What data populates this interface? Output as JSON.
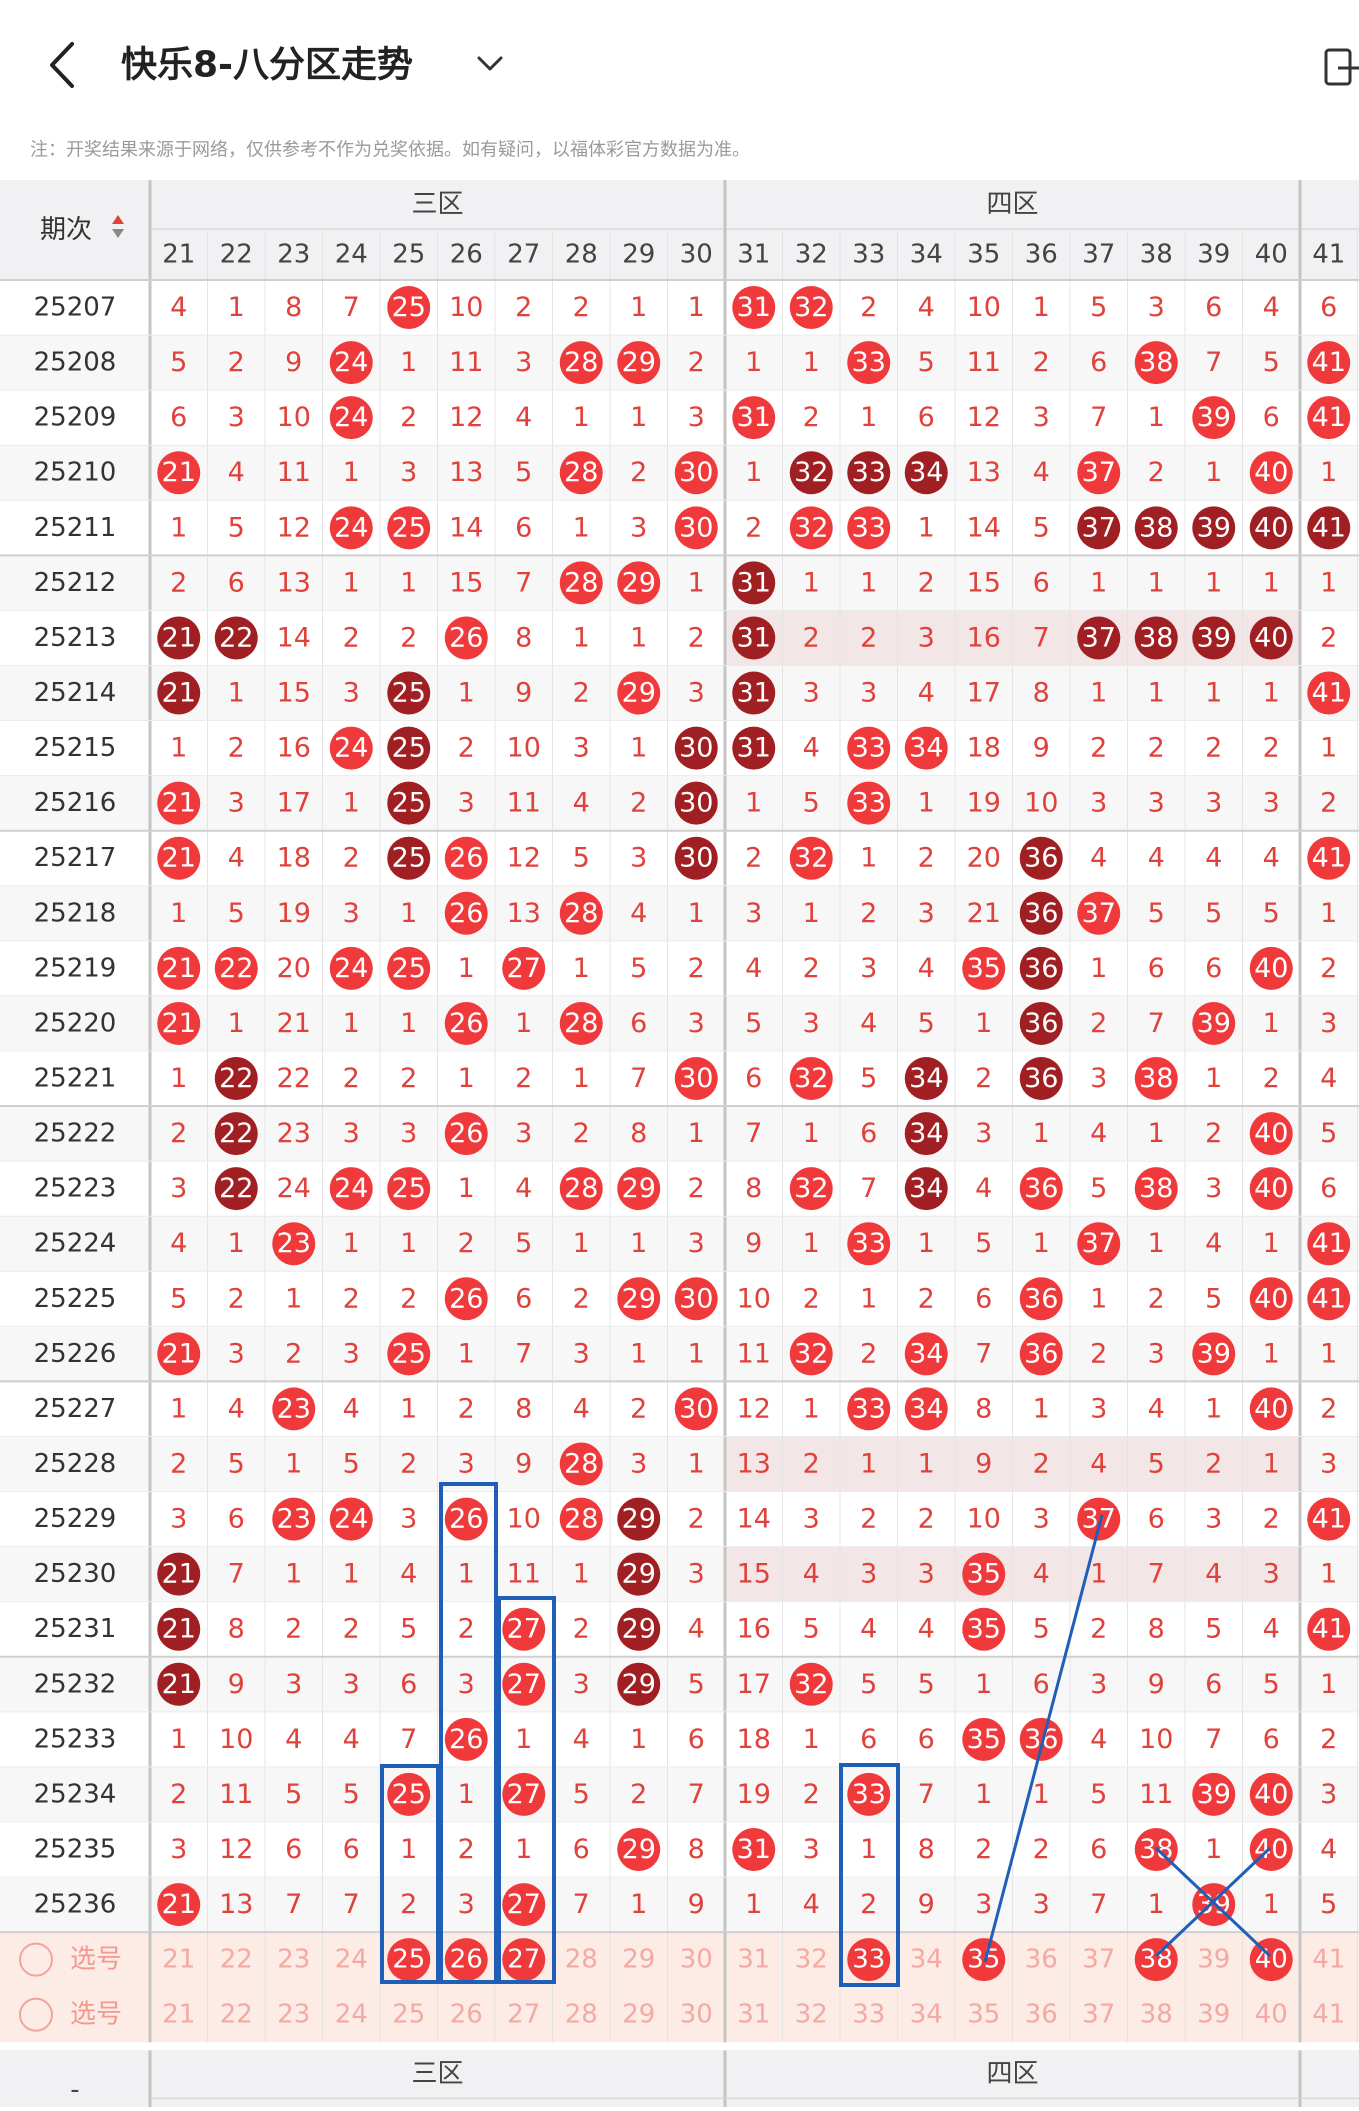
{
  "header": {
    "title": "快乐8-八分区走势"
  },
  "note": "注：开奖结果来源于网络，仅供参考不作为兑奖依据。如有疑问，以福体彩官方数据为准。",
  "table": {
    "period_label": "期次",
    "zones": [
      "三区",
      "四区"
    ],
    "columns": [
      21,
      22,
      23,
      24,
      25,
      26,
      27,
      28,
      29,
      30,
      31,
      32,
      33,
      34,
      35,
      36,
      37,
      38,
      39,
      40,
      41
    ],
    "rows": [
      {
        "period": "25207",
        "cells": [
          4,
          1,
          8,
          7,
          25,
          10,
          2,
          2,
          1,
          1,
          31,
          32,
          2,
          4,
          10,
          1,
          5,
          3,
          6,
          4,
          6
        ],
        "hit": [
          25,
          31,
          32
        ]
      },
      {
        "period": "25208",
        "cells": [
          5,
          2,
          9,
          24,
          1,
          11,
          3,
          28,
          29,
          2,
          1,
          1,
          33,
          5,
          11,
          2,
          6,
          38,
          7,
          5,
          41
        ],
        "hit": [
          24,
          28,
          29,
          33,
          38,
          41
        ]
      },
      {
        "period": "25209",
        "cells": [
          6,
          3,
          10,
          24,
          2,
          12,
          4,
          1,
          1,
          3,
          31,
          2,
          1,
          6,
          12,
          3,
          7,
          1,
          39,
          6,
          41
        ],
        "hit": [
          24,
          31,
          39,
          41
        ]
      },
      {
        "period": "25210",
        "cells": [
          21,
          4,
          11,
          1,
          3,
          13,
          5,
          28,
          2,
          30,
          1,
          32,
          33,
          34,
          13,
          4,
          37,
          2,
          1,
          40,
          1
        ],
        "hit": [
          21,
          28,
          30,
          37,
          40
        ],
        "repeat": [
          32,
          33,
          34
        ]
      },
      {
        "period": "25211",
        "cells": [
          1,
          5,
          12,
          24,
          25,
          14,
          6,
          1,
          3,
          30,
          2,
          32,
          33,
          1,
          14,
          5,
          37,
          38,
          39,
          40,
          41
        ],
        "hit": [
          24,
          25,
          30,
          32,
          33
        ],
        "repeat": [
          37,
          38,
          39,
          40,
          41
        ]
      },
      {
        "period": "25212",
        "cells": [
          2,
          6,
          13,
          1,
          1,
          15,
          7,
          28,
          29,
          1,
          31,
          1,
          1,
          2,
          15,
          6,
          1,
          1,
          1,
          1,
          1
        ],
        "hit": [
          28,
          29
        ],
        "repeat": [
          31
        ]
      },
      {
        "period": "25213",
        "cells": [
          21,
          22,
          14,
          2,
          2,
          26,
          8,
          1,
          1,
          2,
          31,
          2,
          2,
          3,
          16,
          7,
          37,
          38,
          39,
          40,
          2
        ],
        "hit": [
          26
        ],
        "repeat": [
          21,
          22,
          31,
          37,
          38,
          39,
          40
        ]
      },
      {
        "period": "25214",
        "cells": [
          21,
          1,
          15,
          3,
          25,
          1,
          9,
          2,
          29,
          3,
          31,
          3,
          3,
          4,
          17,
          8,
          1,
          1,
          1,
          1,
          41
        ],
        "hit": [
          29,
          41
        ],
        "repeat": [
          21,
          25,
          31
        ]
      },
      {
        "period": "25215",
        "cells": [
          1,
          2,
          16,
          24,
          25,
          2,
          10,
          3,
          1,
          30,
          31,
          4,
          33,
          34,
          18,
          9,
          2,
          2,
          2,
          2,
          1
        ],
        "hit": [
          24,
          33,
          34
        ],
        "repeat": [
          25,
          30,
          31
        ]
      },
      {
        "period": "25216",
        "cells": [
          21,
          3,
          17,
          1,
          25,
          3,
          11,
          4,
          2,
          30,
          1,
          5,
          33,
          1,
          19,
          10,
          3,
          3,
          3,
          3,
          2
        ],
        "hit": [
          21,
          33
        ],
        "repeat": [
          25,
          30
        ]
      },
      {
        "period": "25217",
        "cells": [
          21,
          4,
          18,
          2,
          25,
          26,
          12,
          5,
          3,
          30,
          2,
          32,
          1,
          2,
          20,
          36,
          4,
          4,
          4,
          4,
          41
        ],
        "hit": [
          21,
          26,
          32,
          41
        ],
        "repeat": [
          25,
          30,
          36
        ]
      },
      {
        "period": "25218",
        "cells": [
          1,
          5,
          19,
          3,
          1,
          26,
          13,
          28,
          4,
          1,
          3,
          1,
          2,
          3,
          21,
          36,
          37,
          5,
          5,
          5,
          1
        ],
        "hit": [
          26,
          28,
          37
        ],
        "repeat": [
          36
        ]
      },
      {
        "period": "25219",
        "cells": [
          21,
          22,
          20,
          24,
          25,
          1,
          27,
          1,
          5,
          2,
          4,
          2,
          3,
          4,
          35,
          36,
          1,
          6,
          6,
          40,
          2
        ],
        "hit": [
          21,
          22,
          24,
          25,
          27,
          35,
          40
        ],
        "repeat": [
          36
        ]
      },
      {
        "period": "25220",
        "cells": [
          21,
          1,
          21,
          1,
          1,
          26,
          1,
          28,
          6,
          3,
          5,
          3,
          4,
          5,
          1,
          36,
          2,
          7,
          39,
          1,
          3
        ],
        "hit": [
          21,
          26,
          28,
          39
        ],
        "repeat": [
          36
        ]
      },
      {
        "period": "25221",
        "cells": [
          1,
          22,
          22,
          2,
          2,
          1,
          2,
          1,
          7,
          30,
          6,
          32,
          5,
          34,
          2,
          36,
          3,
          38,
          1,
          2,
          4
        ],
        "hit": [
          30,
          32,
          38
        ],
        "repeat": [
          22,
          34,
          36
        ]
      },
      {
        "period": "25222",
        "cells": [
          2,
          22,
          23,
          3,
          3,
          26,
          3,
          2,
          8,
          1,
          7,
          1,
          6,
          34,
          3,
          1,
          4,
          1,
          2,
          40,
          5
        ],
        "hit": [
          26,
          40
        ],
        "repeat": [
          22,
          34
        ]
      },
      {
        "period": "25223",
        "cells": [
          3,
          22,
          24,
          24,
          25,
          1,
          4,
          28,
          29,
          2,
          8,
          32,
          7,
          34,
          4,
          36,
          5,
          38,
          3,
          40,
          6
        ],
        "hit": [
          24,
          25,
          28,
          29,
          32,
          36,
          38,
          40
        ],
        "repeat": [
          22,
          34
        ]
      },
      {
        "period": "25224",
        "cells": [
          4,
          1,
          23,
          1,
          1,
          2,
          5,
          1,
          1,
          3,
          9,
          1,
          33,
          1,
          5,
          1,
          37,
          1,
          4,
          1,
          41
        ],
        "hit": [
          23,
          33,
          37,
          41
        ]
      },
      {
        "period": "25225",
        "cells": [
          5,
          2,
          1,
          2,
          2,
          26,
          6,
          2,
          29,
          30,
          10,
          2,
          1,
          2,
          6,
          36,
          1,
          2,
          5,
          40,
          41
        ],
        "hit": [
          26,
          29,
          30,
          36,
          40,
          41
        ]
      },
      {
        "period": "25226",
        "cells": [
          21,
          3,
          2,
          3,
          25,
          1,
          7,
          3,
          1,
          1,
          11,
          32,
          2,
          34,
          7,
          36,
          2,
          3,
          39,
          1,
          1
        ],
        "hit": [
          21,
          25,
          32,
          34,
          36,
          39
        ]
      },
      {
        "period": "25227",
        "cells": [
          1,
          4,
          23,
          4,
          1,
          2,
          8,
          4,
          2,
          30,
          12,
          1,
          33,
          34,
          8,
          1,
          3,
          4,
          1,
          40,
          2
        ],
        "hit": [
          23,
          30,
          33,
          34,
          40
        ]
      },
      {
        "period": "25228",
        "cells": [
          2,
          5,
          1,
          5,
          2,
          3,
          9,
          28,
          3,
          1,
          13,
          2,
          1,
          1,
          9,
          2,
          4,
          5,
          2,
          1,
          3
        ],
        "hit": [
          28
        ]
      },
      {
        "period": "25229",
        "cells": [
          3,
          6,
          23,
          24,
          3,
          26,
          10,
          28,
          29,
          2,
          14,
          3,
          2,
          2,
          10,
          3,
          37,
          6,
          3,
          2,
          41
        ],
        "hit": [
          23,
          24,
          26,
          28,
          37,
          41
        ],
        "repeat": [
          29
        ]
      },
      {
        "period": "25230",
        "cells": [
          21,
          7,
          1,
          1,
          4,
          1,
          11,
          1,
          29,
          3,
          15,
          4,
          3,
          3,
          35,
          4,
          1,
          7,
          4,
          3,
          1
        ],
        "hit": [
          35
        ],
        "repeat": [
          21,
          29
        ]
      },
      {
        "period": "25231",
        "cells": [
          21,
          8,
          2,
          2,
          5,
          2,
          27,
          2,
          29,
          4,
          16,
          5,
          4,
          4,
          35,
          5,
          2,
          8,
          5,
          4,
          41
        ],
        "hit": [
          27,
          35,
          41
        ],
        "repeat": [
          21,
          29
        ]
      },
      {
        "period": "25232",
        "cells": [
          21,
          9,
          3,
          3,
          6,
          3,
          27,
          3,
          29,
          5,
          17,
          32,
          5,
          5,
          1,
          6,
          3,
          9,
          6,
          5,
          1
        ],
        "hit": [
          27,
          32
        ],
        "repeat": [
          21,
          29
        ]
      },
      {
        "period": "25233",
        "cells": [
          1,
          10,
          4,
          4,
          7,
          26,
          1,
          4,
          1,
          6,
          18,
          1,
          6,
          6,
          35,
          36,
          4,
          10,
          7,
          6,
          2
        ],
        "hit": [
          26,
          35,
          36
        ]
      },
      {
        "period": "25234",
        "cells": [
          2,
          11,
          5,
          5,
          25,
          1,
          27,
          5,
          2,
          7,
          19,
          2,
          33,
          7,
          1,
          1,
          5,
          11,
          39,
          40,
          3
        ],
        "hit": [
          25,
          27,
          33,
          39,
          40
        ]
      },
      {
        "period": "25235",
        "cells": [
          3,
          12,
          6,
          6,
          1,
          2,
          1,
          6,
          29,
          8,
          31,
          3,
          1,
          8,
          2,
          2,
          6,
          38,
          1,
          40,
          4
        ],
        "hit": [
          29,
          31,
          38,
          40
        ]
      },
      {
        "period": "25236",
        "cells": [
          21,
          13,
          7,
          7,
          2,
          3,
          27,
          7,
          1,
          9,
          1,
          4,
          2,
          9,
          3,
          3,
          7,
          1,
          39,
          1,
          5
        ],
        "hit": [
          21,
          27,
          39
        ]
      }
    ],
    "pick_rows": [
      {
        "label": "选号",
        "numbers": [
          21,
          22,
          23,
          24,
          25,
          26,
          27,
          28,
          29,
          30,
          31,
          32,
          33,
          34,
          35,
          36,
          37,
          38,
          39,
          40,
          41
        ],
        "picked": [
          25,
          26,
          27,
          33,
          35,
          38,
          40
        ]
      },
      {
        "label": "选号",
        "numbers": [
          21,
          22,
          23,
          24,
          25,
          26,
          27,
          28,
          29,
          30,
          31,
          32,
          33,
          34,
          35,
          36,
          37,
          38,
          39,
          40,
          41
        ]
      }
    ],
    "footer": {
      "period": "-",
      "zones": [
        "三区",
        "四区"
      ]
    }
  }
}
